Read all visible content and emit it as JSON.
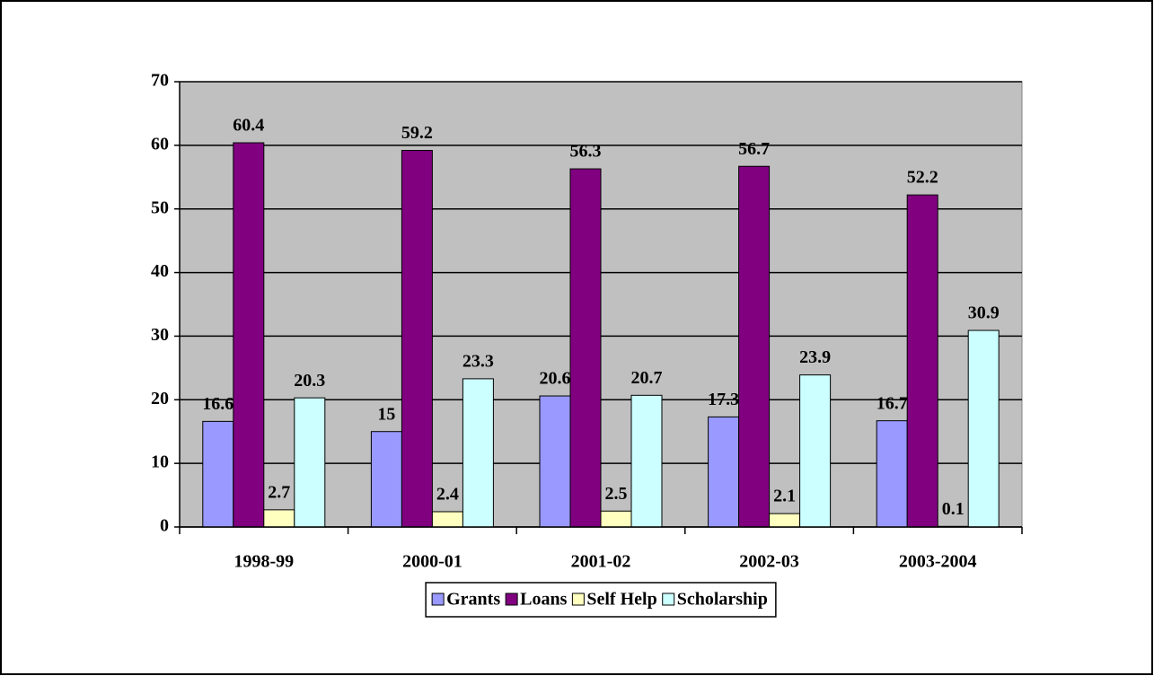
{
  "chart_data": {
    "type": "bar",
    "categories": [
      "1998-99",
      "2000-01",
      "2001-02",
      "2002-03",
      "2003-2004"
    ],
    "series": [
      {
        "name": "Grants",
        "color": "#9999ff",
        "values": [
          16.6,
          15,
          20.6,
          17.3,
          16.7
        ]
      },
      {
        "name": "Loans",
        "color": "#800080",
        "values": [
          60.4,
          59.2,
          56.3,
          56.7,
          52.2
        ]
      },
      {
        "name": "Self Help",
        "color": "#ffffc0",
        "values": [
          2.7,
          2.4,
          2.5,
          2.1,
          0.1
        ]
      },
      {
        "name": "Scholarship",
        "color": "#ccffff",
        "values": [
          20.3,
          23.3,
          20.7,
          23.9,
          30.9
        ]
      }
    ],
    "ylim": [
      0,
      70
    ],
    "yticks": [
      0,
      10,
      20,
      30,
      40,
      50,
      60,
      70
    ],
    "grid": true,
    "legend": "bottom",
    "plot_background": "#c0c0c0"
  }
}
